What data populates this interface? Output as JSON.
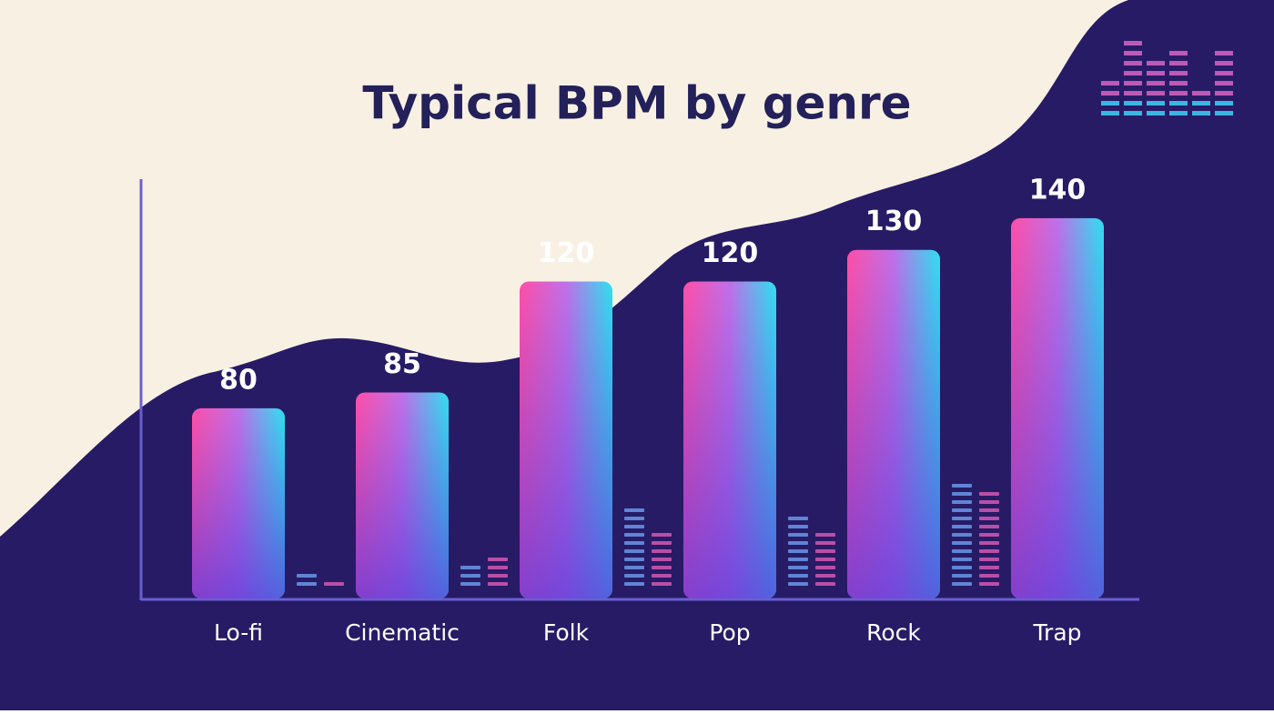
{
  "chart_data": {
    "type": "bar",
    "title": "Typical BPM by genre",
    "categories": [
      "Lo-fi",
      "Cinematic",
      "Folk",
      "Pop",
      "Rock",
      "Trap"
    ],
    "values": [
      80,
      85,
      120,
      120,
      130,
      140
    ],
    "ylim": [
      20,
      150
    ]
  }
}
